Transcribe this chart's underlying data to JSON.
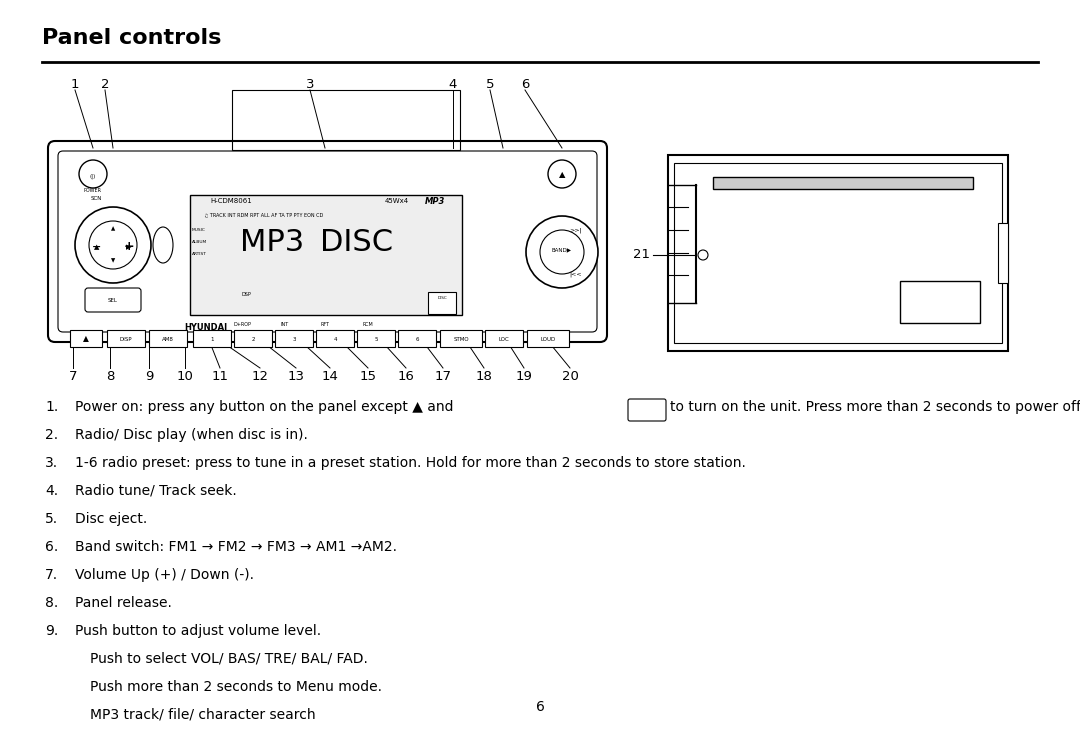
{
  "title": "Panel controls",
  "title_fontsize": 16,
  "title_fontweight": "bold",
  "bg_color": "#ffffff",
  "text_color": "#000000",
  "page_number": "6",
  "descriptions": [
    {
      "num": "1.",
      "text": "Power on: press any button on the panel except ▲ and  ▲  to turn on the unit. Press more than 2 seconds to power off."
    },
    {
      "num": "2.",
      "text": "Radio/ Disc play (when disc is in)."
    },
    {
      "num": "3.",
      "text": "1-6 radio preset: press to tune in a preset station. Hold for more than 2 seconds to store station."
    },
    {
      "num": "4.",
      "text": "Radio tune/ Track seek."
    },
    {
      "num": "5.",
      "text": "Disc eject."
    },
    {
      "num": "6.",
      "text": "Band switch: FM1 → FM2 → FM3 → AM1 →AM2."
    },
    {
      "num": "7.",
      "text": "Volume Up (+) / Down (-)."
    },
    {
      "num": "8.",
      "text": "Panel release."
    },
    {
      "num": "9.",
      "text": "Push button to adjust volume level."
    },
    {
      "num": "",
      "text": "Push to select VOL/ BAS/ TRE/ BAL/ FAD."
    },
    {
      "num": "",
      "text": "Push more than 2 seconds to Menu mode."
    },
    {
      "num": "",
      "text": "MP3 track/ file/ character search"
    }
  ]
}
